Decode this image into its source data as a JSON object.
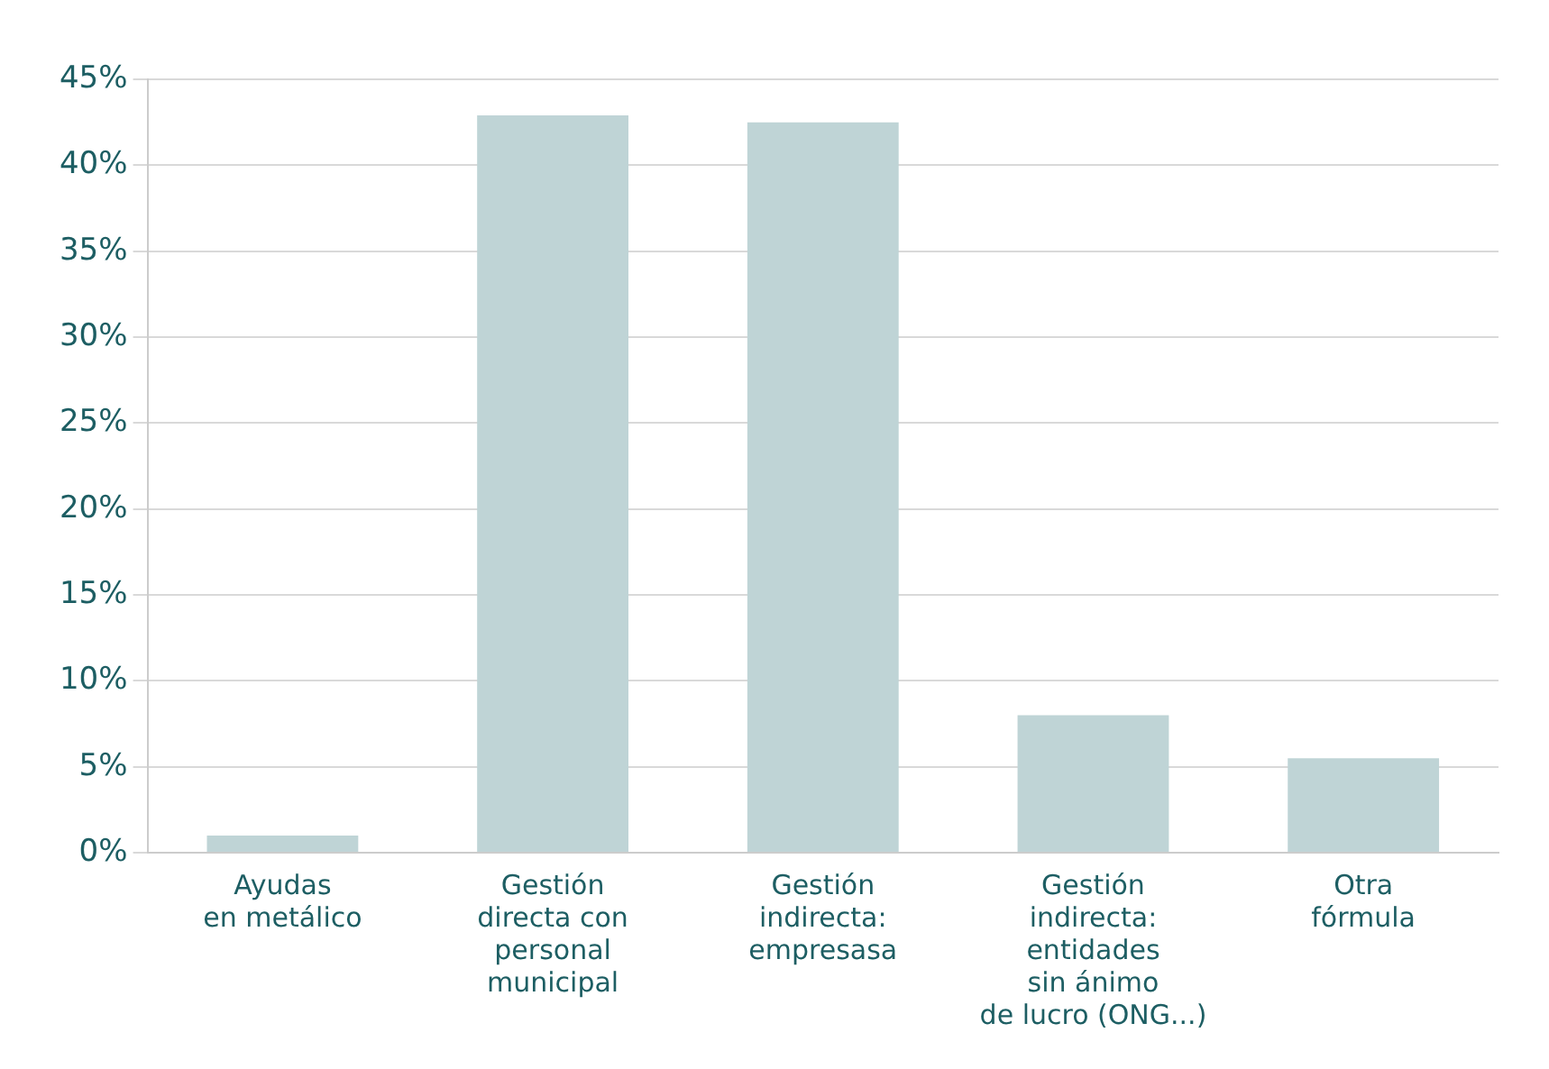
{
  "chart_data": {
    "type": "bar",
    "categories": [
      "Ayudas\nen metálico",
      "Gestión\ndirecta con\npersonal\nmunicipal",
      "Gestión\nindirecta:\nempresasa",
      "Gestión\nindirecta:\nentidades\nsin ánimo\nde lucro (ONG...)",
      "Otra\nfórmula"
    ],
    "values": [
      1,
      42.9,
      42.5,
      8,
      5.5
    ],
    "color": "#bfd4d6",
    "ylim": [
      0,
      45
    ],
    "yticks": [
      {
        "value": 0,
        "label": "0%"
      },
      {
        "value": 5,
        "label": "5%"
      },
      {
        "value": 10,
        "label": "10%"
      },
      {
        "value": 15,
        "label": "15%"
      },
      {
        "value": 20,
        "label": "20%"
      },
      {
        "value": 25,
        "label": "25%"
      },
      {
        "value": 30,
        "label": "30%"
      },
      {
        "value": 35,
        "label": "35%"
      },
      {
        "value": 40,
        "label": "40%"
      },
      {
        "value": 45,
        "label": "45%"
      }
    ],
    "grid": "y"
  }
}
